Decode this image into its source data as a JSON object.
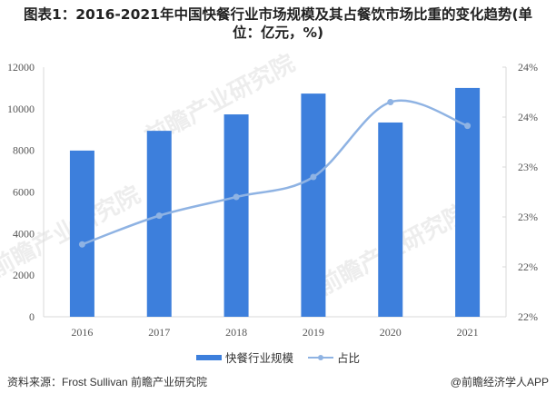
{
  "title_line1": "图表1：2016-2021年中国快餐行业市场规模及其占餐饮市场比重的变化趋势(单",
  "title_line2": "位：亿元，%)",
  "legend": {
    "bar_label": "快餐行业规模",
    "line_label": "占比"
  },
  "footer": {
    "source": "资料来源：Frost Sullivan 前瞻产业研究院",
    "credit": "@前瞻经济学人APP"
  },
  "watermark": "前瞻产业研究院",
  "colors": {
    "bar": "#3d7fdc",
    "line": "#8fb3e3",
    "axis": "#d9d9d9",
    "text": "#555555"
  },
  "chart_data": {
    "type": "bar+line",
    "title": "2016-2021年中国快餐行业市场规模及其占餐饮市场比重的变化趋势(单位：亿元，%)",
    "categories": [
      "2016",
      "2017",
      "2018",
      "2019",
      "2020",
      "2021"
    ],
    "series": [
      {
        "name": "快餐行业规模",
        "type": "bar",
        "axis": "left",
        "values": [
          7990,
          8940,
          9730,
          10730,
          9340,
          11000
        ]
      },
      {
        "name": "占比",
        "type": "line",
        "axis": "right",
        "values": [
          22.58,
          22.81,
          22.96,
          23.12,
          23.72,
          23.53
        ]
      }
    ],
    "y_left": {
      "ylim": [
        0,
        12000
      ],
      "ticks": [
        "0",
        "2000",
        "4000",
        "6000",
        "8000",
        "10000",
        "12000"
      ]
    },
    "y_right": {
      "ylim": [
        22.0,
        24.0
      ],
      "ticks": [
        "22%",
        "22%",
        "23%",
        "23%",
        "24%",
        "24%"
      ]
    },
    "xlabel": "",
    "ylabel": "",
    "grid": false,
    "legend_position": "bottom"
  }
}
